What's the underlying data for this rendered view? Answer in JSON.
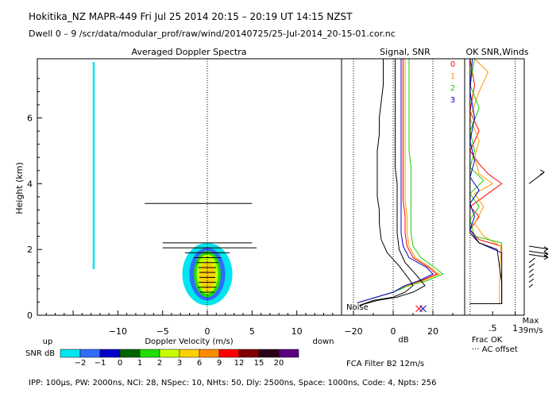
{
  "header": {
    "line1": "Hokitika_NZ   MAPR-449   Fri Jul 25 2014 20:15 – 20:19 UT 14:15 NZST",
    "line2": "Dwell  0 – 9   /scr/data/modular_prof/raw/wind/20140725/25-Jul-2014_20-15-01.cor.nc"
  },
  "footer": {
    "params": "IPP: 100µs,  PW: 2000ns,  NCI: 28,  NSpec: 10,  NHts: 50,  Dly: 2500ns,  Space: 1000ns,  Code: 4,  Npts: 256",
    "filter": "FCA Filter B2 12m/s"
  },
  "colors": {
    "colorbar": [
      "#00e5ee",
      "#2f6cff",
      "#0000c8",
      "#006400",
      "#22dd00",
      "#c8ff00",
      "#ffd000",
      "#ff8c00",
      "#ff0000",
      "#800000",
      "#2a001a",
      "#5a0080"
    ],
    "beam": [
      "#ff0000",
      "#ff9900",
      "#22cc00",
      "#0000cc"
    ],
    "snr_black": "#000000",
    "spectrum_zero_line": "#00e5ee"
  },
  "chart_data": [
    {
      "type": "heatmap",
      "title": "Averaged Doppler Spectra",
      "xlabel": "Doppler Velocity (m/s)",
      "ylabel": "Height (km)",
      "xlim": [
        -19,
        15
      ],
      "ylim": [
        0,
        7.8
      ],
      "xticks": [
        -10,
        -5,
        0,
        5,
        10
      ],
      "yticks": [
        0,
        2,
        4,
        6
      ],
      "side_labels": {
        "left": "up",
        "right": "down"
      },
      "colorbar": {
        "label": "SNR dB",
        "ticks": [
          "-2",
          "-1",
          "0",
          "1",
          "2",
          "3",
          "6",
          "9",
          "12",
          "15",
          "20"
        ]
      },
      "blobs": [
        {
          "v_center": 0.0,
          "h_center": 1.25,
          "v_halfwidth": 2.8,
          "h_halfwidth": 0.95,
          "snr_db": -2
        },
        {
          "v_center": 0.0,
          "h_center": 1.25,
          "v_halfwidth": 2.0,
          "h_halfwidth": 0.8,
          "snr_db": -1
        },
        {
          "v_center": 0.0,
          "h_center": 1.25,
          "v_halfwidth": 1.5,
          "h_halfwidth": 0.7,
          "snr_db": 2
        },
        {
          "v_center": 0.0,
          "h_center": 1.25,
          "v_halfwidth": 1.2,
          "h_halfwidth": 0.6,
          "snr_db": 3
        },
        {
          "v_center": 0.0,
          "h_center": 1.2,
          "v_halfwidth": 0.8,
          "h_halfwidth": 0.45,
          "snr_db": 6
        }
      ],
      "width_bars": [
        {
          "height": 3.4,
          "v_min": -7.0,
          "v_max": 5.0
        },
        {
          "height": 2.2,
          "v_min": -5.0,
          "v_max": 5.0
        },
        {
          "height": 2.05,
          "v_min": -5.0,
          "v_max": 5.5
        },
        {
          "height": 1.9,
          "v_min": -2.5,
          "v_max": 2.5
        },
        {
          "height": 1.75,
          "v_min": -1.5,
          "v_max": 1.5
        },
        {
          "height": 1.6,
          "v_min": -1.2,
          "v_max": 1.2
        },
        {
          "height": 1.45,
          "v_min": -1.0,
          "v_max": 1.0
        },
        {
          "height": 1.3,
          "v_min": -0.9,
          "v_max": 0.9
        },
        {
          "height": 1.15,
          "v_min": -0.9,
          "v_max": 0.9
        },
        {
          "height": 1.0,
          "v_min": -1.0,
          "v_max": 1.0
        },
        {
          "height": 0.85,
          "v_min": -1.0,
          "v_max": 1.0
        },
        {
          "height": 0.7,
          "v_min": -0.8,
          "v_max": 0.8
        }
      ],
      "vertical_strip": {
        "velocity": -12.7,
        "h_min": 1.4,
        "h_max": 7.7
      }
    },
    {
      "type": "line",
      "title": "Signal, SNR",
      "xlabel": "dB",
      "xlim": [
        -26,
        36
      ],
      "xticks": [
        -20,
        0,
        20
      ],
      "xtick_labels": [
        "−20",
        "0",
        "20"
      ],
      "x_minor_ticks": [
        -10,
        10,
        30
      ],
      "noise_label": "Noise",
      "series": [
        {
          "name": "0",
          "color": "#ff0000",
          "points": [
            [
              -18,
              0.38
            ],
            [
              0,
              0.7
            ],
            [
              6,
              0.9
            ],
            [
              14,
              1.05
            ],
            [
              22,
              1.25
            ],
            [
              18,
              1.45
            ],
            [
              10,
              1.75
            ],
            [
              7,
              2.1
            ],
            [
              6,
              2.5
            ],
            [
              6,
              3
            ],
            [
              5,
              3.5
            ],
            [
              5,
              4
            ],
            [
              5,
              4.5
            ],
            [
              5,
              5
            ],
            [
              5,
              5.5
            ],
            [
              5,
              6
            ],
            [
              5,
              6.5
            ],
            [
              5,
              7
            ],
            [
              5,
              7.8
            ]
          ]
        },
        {
          "name": "1",
          "color": "#ff9900",
          "points": [
            [
              -18,
              0.38
            ],
            [
              0,
              0.7
            ],
            [
              7,
              0.9
            ],
            [
              15,
              1.05
            ],
            [
              23,
              1.25
            ],
            [
              19,
              1.45
            ],
            [
              11,
              1.75
            ],
            [
              8,
              2.1
            ],
            [
              7,
              2.5
            ],
            [
              7,
              3
            ],
            [
              6,
              3.5
            ],
            [
              6,
              4
            ],
            [
              6,
              4.5
            ],
            [
              6,
              5
            ],
            [
              6,
              5.5
            ],
            [
              6,
              6
            ],
            [
              6,
              6.5
            ],
            [
              6,
              7
            ],
            [
              6,
              7.8
            ]
          ]
        },
        {
          "name": "2",
          "color": "#22cc00",
          "points": [
            [
              -18,
              0.38
            ],
            [
              0,
              0.7
            ],
            [
              8,
              0.9
            ],
            [
              17,
              1.05
            ],
            [
              25,
              1.25
            ],
            [
              21,
              1.45
            ],
            [
              14,
              1.75
            ],
            [
              10,
              2.1
            ],
            [
              9,
              2.5
            ],
            [
              9,
              3
            ],
            [
              9,
              3.5
            ],
            [
              9,
              4
            ],
            [
              9,
              4.5
            ],
            [
              8,
              5
            ],
            [
              8,
              5.5
            ],
            [
              8,
              6
            ],
            [
              8,
              6.5
            ],
            [
              8,
              7
            ],
            [
              8,
              7.8
            ]
          ]
        },
        {
          "name": "3",
          "color": "#0000cc",
          "points": [
            [
              -18,
              0.38
            ],
            [
              0,
              0.7
            ],
            [
              6,
              0.9
            ],
            [
              13,
              1.05
            ],
            [
              20,
              1.25
            ],
            [
              17,
              1.45
            ],
            [
              8,
              1.75
            ],
            [
              5,
              2.1
            ],
            [
              4,
              2.5
            ],
            [
              4,
              3
            ],
            [
              4,
              3.5
            ],
            [
              4,
              4
            ],
            [
              4,
              4.5
            ],
            [
              4,
              5
            ],
            [
              4,
              5.5
            ],
            [
              4,
              6
            ],
            [
              4,
              6.5
            ],
            [
              4,
              7
            ],
            [
              4,
              7.8
            ]
          ]
        },
        {
          "name": "",
          "color": "#000000",
          "points": [
            [
              -17,
              0.3
            ],
            [
              -10,
              0.45
            ],
            [
              0,
              0.55
            ],
            [
              6,
              0.7
            ],
            [
              10,
              0.9
            ],
            [
              8,
              1.1
            ],
            [
              3,
              1.5
            ],
            [
              -3,
              1.9
            ],
            [
              -6,
              2.3
            ],
            [
              -7,
              2.8
            ],
            [
              -7,
              3.2
            ],
            [
              -8,
              3.6
            ],
            [
              -8,
              4
            ],
            [
              -8,
              4.5
            ],
            [
              -8,
              5
            ],
            [
              -7,
              5.5
            ],
            [
              -7,
              6
            ],
            [
              -6,
              6.5
            ],
            [
              -5,
              7
            ],
            [
              -5,
              7.8
            ]
          ]
        },
        {
          "name": "",
          "color": "#000000",
          "points": [
            [
              -17,
              0.3
            ],
            [
              -8,
              0.45
            ],
            [
              2,
              0.55
            ],
            [
              10,
              0.7
            ],
            [
              16,
              0.9
            ],
            [
              12,
              1.2
            ],
            [
              6,
              1.6
            ],
            [
              3,
              2
            ],
            [
              2,
              2.5
            ],
            [
              2,
              3
            ],
            [
              2,
              3.5
            ],
            [
              2,
              4
            ],
            [
              1,
              4.5
            ],
            [
              1,
              5
            ],
            [
              1,
              5.5
            ],
            [
              1,
              6
            ],
            [
              1,
              6.5
            ],
            [
              1,
              7
            ],
            [
              1,
              7.8
            ]
          ]
        }
      ],
      "markers": [
        {
          "x": 13,
          "y": 0.2,
          "color": "#ff0000"
        },
        {
          "x": 15,
          "y": 0.2,
          "color": "#0000cc"
        }
      ]
    },
    {
      "type": "line",
      "title": "OK SNR,Winds",
      "legend": [
        "0",
        "1",
        "2",
        "3"
      ],
      "xlim": [
        -0.12,
        1.2
      ],
      "xticks": [
        0.5,
        1
      ],
      "xtick_labels": [
        ".5",
        "1"
      ],
      "bottom_labels": [
        "Frac OK",
        "··· AC offset"
      ],
      "wind_scale_label": "Max",
      "wind_scale_value": "39m/s",
      "series": [
        {
          "name": "0",
          "color": "#ff0000",
          "points": [
            [
              0.0,
              0.35
            ],
            [
              0.7,
              0.35
            ],
            [
              0.7,
              0.9
            ],
            [
              0.7,
              2.1
            ],
            [
              0.2,
              2.3
            ],
            [
              0.0,
              2.6
            ],
            [
              0.2,
              3
            ],
            [
              0.0,
              3.3
            ],
            [
              0.4,
              3.7
            ],
            [
              0.7,
              4.0
            ],
            [
              0.4,
              4.3
            ],
            [
              0.2,
              4.6
            ],
            [
              0.0,
              5
            ],
            [
              0.2,
              5.6
            ],
            [
              0.0,
              6.2
            ],
            [
              0.1,
              7
            ],
            [
              0.0,
              7.8
            ]
          ]
        },
        {
          "name": "1",
          "color": "#ff9900",
          "points": [
            [
              0.0,
              0.35
            ],
            [
              0.65,
              0.35
            ],
            [
              0.65,
              0.9
            ],
            [
              0.68,
              2.1
            ],
            [
              0.3,
              2.4
            ],
            [
              0.1,
              2.8
            ],
            [
              0.3,
              3.3
            ],
            [
              0.1,
              3.7
            ],
            [
              0.5,
              4.0
            ],
            [
              0.2,
              4.3
            ],
            [
              0.1,
              4.8
            ],
            [
              0.2,
              5.3
            ],
            [
              0.0,
              6
            ],
            [
              0.2,
              6.8
            ],
            [
              0.4,
              7.4
            ],
            [
              0.1,
              7.8
            ]
          ]
        },
        {
          "name": "2",
          "color": "#22cc00",
          "points": [
            [
              0.0,
              0.35
            ],
            [
              0.7,
              0.35
            ],
            [
              0.7,
              0.9
            ],
            [
              0.7,
              2.2
            ],
            [
              0.1,
              2.4
            ],
            [
              0.0,
              2.9
            ],
            [
              0.2,
              3.3
            ],
            [
              0.0,
              3.7
            ],
            [
              0.3,
              4.1
            ],
            [
              0.0,
              4.5
            ],
            [
              0.1,
              5
            ],
            [
              0.0,
              5.6
            ],
            [
              0.2,
              6.3
            ],
            [
              0.0,
              7
            ],
            [
              0.1,
              7.8
            ]
          ]
        },
        {
          "name": "3",
          "color": "#0000cc",
          "points": [
            [
              0.0,
              0.35
            ],
            [
              0.7,
              0.35
            ],
            [
              0.7,
              0.9
            ],
            [
              0.7,
              1.9
            ],
            [
              0.2,
              2.2
            ],
            [
              0.0,
              2.6
            ],
            [
              0.1,
              3
            ],
            [
              0.0,
              3.4
            ],
            [
              0.2,
              3.8
            ],
            [
              0.0,
              4.2
            ],
            [
              0.1,
              4.7
            ],
            [
              0.0,
              5.3
            ],
            [
              0.1,
              6
            ],
            [
              0.0,
              6.8
            ],
            [
              0.05,
              7.8
            ]
          ]
        },
        {
          "name": "",
          "color": "#000000",
          "points": [
            [
              0.0,
              0.35
            ],
            [
              0.7,
              0.35
            ],
            [
              0.7,
              1.0
            ],
            [
              0.6,
              2.0
            ],
            [
              0.2,
              2.2
            ],
            [
              0.0,
              2.5
            ],
            [
              0.0,
              7.8
            ]
          ]
        }
      ],
      "wind_barbs": [
        {
          "height": 4.0,
          "dir": "ne",
          "length": 1.0
        },
        {
          "height": 2.1,
          "dir": "e",
          "length": 1.0
        },
        {
          "height": 1.95,
          "dir": "e",
          "length": 1.0
        },
        {
          "height": 1.85,
          "dir": "e",
          "length": 1.0
        },
        {
          "height": 1.6,
          "dir": "ne",
          "length": 0.4
        },
        {
          "height": 1.45,
          "dir": "ne",
          "length": 0.35
        },
        {
          "height": 1.3,
          "dir": "ne",
          "length": 0.3
        },
        {
          "height": 1.15,
          "dir": "ne",
          "length": 0.3
        },
        {
          "height": 1.0,
          "dir": "ne",
          "length": 0.3
        },
        {
          "height": 0.85,
          "dir": "ne",
          "length": 0.25
        }
      ]
    }
  ]
}
